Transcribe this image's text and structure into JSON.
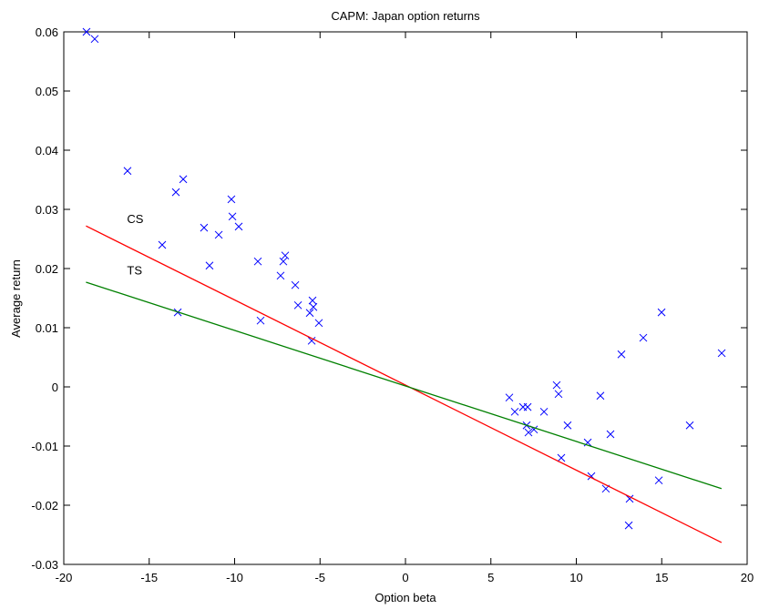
{
  "chart_data": {
    "type": "scatter",
    "title": "CAPM: Japan option returns",
    "xlabel": "Option beta",
    "ylabel": "Average return",
    "xlim": [
      -20,
      20
    ],
    "ylim": [
      -0.03,
      0.06
    ],
    "xticks": [
      -20,
      -15,
      -10,
      -5,
      0,
      5,
      10,
      15,
      20
    ],
    "yticks": [
      -0.03,
      -0.02,
      -0.01,
      0,
      0.01,
      0.02,
      0.03,
      0.04,
      0.05,
      0.06
    ],
    "series": [
      {
        "type": "scatter",
        "color": "#0000ff",
        "x": [
          -18.67,
          -18.19,
          -16.27,
          -13.44,
          -13.01,
          -14.24,
          -11.79,
          -11.47,
          -10.93,
          -10.19,
          -10.13,
          -9.76,
          -13.33,
          -8.64,
          -8.48,
          -7.31,
          -7.15,
          -7.04,
          -6.45,
          -6.29,
          -5.6,
          -5.44,
          -5.39,
          -5.49,
          -5.07,
          6.08,
          6.4,
          6.88,
          7.15,
          7.09,
          7.2,
          7.52,
          8.11,
          8.85,
          8.96,
          9.12,
          9.49,
          10.67,
          10.88,
          11.41,
          11.73,
          12.0,
          12.64,
          13.12,
          13.07,
          13.92,
          14.83,
          14.99,
          16.64,
          18.51
        ],
        "values": [
          0.06,
          0.0588,
          0.0365,
          0.0329,
          0.0351,
          0.024,
          0.0269,
          0.0205,
          0.0257,
          0.0317,
          0.0288,
          0.0271,
          0.0126,
          0.0212,
          0.0112,
          0.0188,
          0.0212,
          0.0222,
          0.0172,
          0.0138,
          0.0125,
          0.0146,
          0.0135,
          0.0078,
          0.0108,
          -0.0018,
          -0.0042,
          -0.0034,
          -0.0034,
          -0.0065,
          -0.0077,
          -0.0072,
          -0.0042,
          0.0003,
          -0.0012,
          -0.012,
          -0.0065,
          -0.0094,
          -0.0151,
          -0.0015,
          -0.0172,
          -0.008,
          0.0055,
          -0.0189,
          -0.0234,
          0.0083,
          -0.0158,
          0.0126,
          -0.0065,
          0.0057
        ]
      },
      {
        "type": "line",
        "name": "CS",
        "color": "#ff0000",
        "x": [
          -18.7,
          18.5
        ],
        "values": [
          0.0272,
          -0.0263
        ]
      },
      {
        "type": "line",
        "name": "TS",
        "color": "#008000",
        "x": [
          -18.7,
          18.5
        ],
        "values": [
          0.0177,
          -0.0172
        ]
      }
    ]
  }
}
